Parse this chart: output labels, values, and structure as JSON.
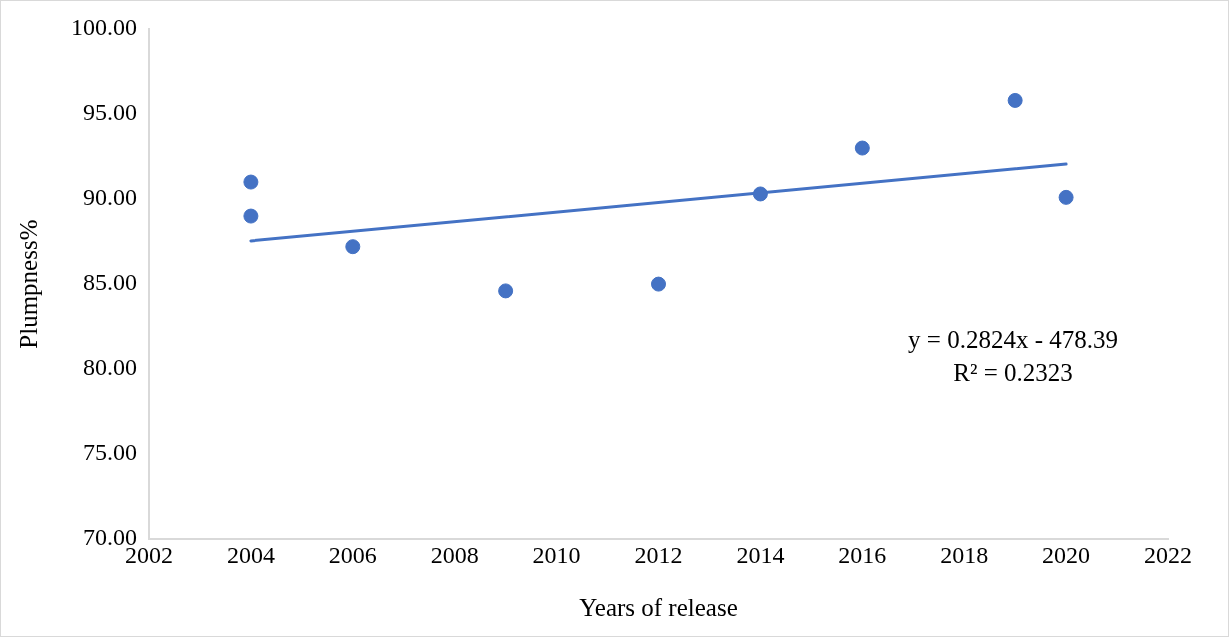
{
  "chart_data": {
    "type": "scatter",
    "xlabel": "Years of release",
    "ylabel": "Plumpness%",
    "series": [
      {
        "color": "#4472c4",
        "x": [
          2004,
          2004,
          2006,
          2009,
          2012,
          2014,
          2016,
          2019,
          2020
        ],
        "values": [
          91.0,
          89.0,
          87.2,
          84.6,
          85.0,
          90.3,
          93.0,
          95.8,
          90.1
        ]
      },
      {
        "type": "line",
        "marker": "none",
        "color": "#4472c4",
        "x": [
          2004,
          2020
        ],
        "values": [
          87.54,
          92.06
        ]
      }
    ],
    "xlim": [
      2002,
      2022
    ],
    "xticks": [
      2002,
      2004,
      2006,
      2008,
      2010,
      2012,
      2014,
      2016,
      2018,
      2020,
      2022
    ],
    "ylim": [
      70,
      100
    ],
    "yticks": [
      {
        "value": 70,
        "label": "70.00"
      },
      {
        "value": 75,
        "label": "75.00"
      },
      {
        "value": 80,
        "label": "80.00"
      },
      {
        "value": 85,
        "label": "85.00"
      },
      {
        "value": 90,
        "label": "90.00"
      },
      {
        "value": 95,
        "label": "95.00"
      },
      {
        "value": 100,
        "label": "100.00"
      }
    ],
    "annotations": [
      "y = 0.2824x - 478.39",
      "R² = 0.2323"
    ],
    "grid": false,
    "legend": false,
    "marker": "circle",
    "line_style": "solid"
  }
}
